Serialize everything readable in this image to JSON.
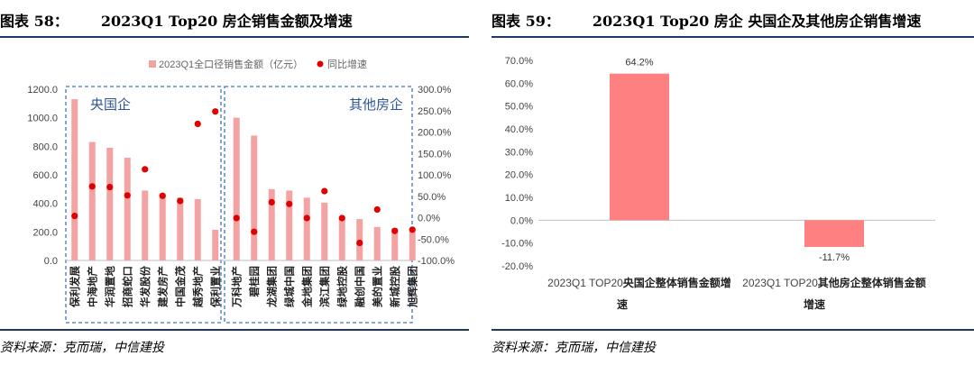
{
  "left": {
    "title_num": "图表 58：",
    "title_text": "2023Q1 Top20 房企销售金额及增速",
    "source": "资料来源：克而瑞，中信建投",
    "chart_data": {
      "type": "bar",
      "series": [
        {
          "name": "2023Q1全口径销售金额（亿元）",
          "axis": "left",
          "kind": "bar",
          "color": "#f4a3a3"
        },
        {
          "name": "同比增速",
          "axis": "right",
          "kind": "scatter",
          "color": "#e00000"
        }
      ],
      "categories": [
        "保利发展",
        "中海地产",
        "华润置地",
        "招商蛇口",
        "华发股份",
        "建发房产",
        "中国金茂",
        "越秀地产",
        "保利置业",
        "万科地产",
        "碧桂园",
        "龙湖集团",
        "绿城中国",
        "金地集团",
        "滨江集团",
        "绿地控股",
        "融创中国",
        "美的置业",
        "新城控股",
        "旭辉集团"
      ],
      "bar_values": [
        1130,
        830,
        790,
        720,
        490,
        470,
        440,
        430,
        215,
        1000,
        875,
        500,
        490,
        440,
        405,
        300,
        290,
        235,
        225,
        225
      ],
      "growth_values_pct": [
        4.0,
        73.0,
        71.5,
        52.0,
        113.0,
        51.0,
        39.0,
        219.0,
        248.0,
        -1.0,
        -33.0,
        36.0,
        32.0,
        -1.0,
        62.0,
        -1.0,
        -59.0,
        19.0,
        -31.0,
        -28.0
      ],
      "left_ticks": [
        "0.0",
        "200.0",
        "400.0",
        "600.0",
        "800.0",
        "1000.0",
        "1200.0"
      ],
      "right_ticks": [
        "-100.0%",
        "-50.0%",
        "0.0%",
        "50.0%",
        "100.0%",
        "150.0%",
        "200.0%",
        "250.0%",
        "300.0%"
      ],
      "ylim_left": [
        0,
        1200
      ],
      "ylim_right": [
        -100,
        300
      ],
      "groups": [
        {
          "label": "央国企",
          "from": 0,
          "to": 8
        },
        {
          "label": "其他房企",
          "from": 9,
          "to": 19
        }
      ],
      "legend_position": "top"
    }
  },
  "right": {
    "title_num": "图表 59：",
    "title_text": "2023Q1 Top20 房企  央国企及其他房企销售增速",
    "source": "资料来源：克而瑞，中信建投",
    "chart_data": {
      "type": "bar",
      "categories": [
        {
          "line1": "2023Q1 TOP20",
          "line1_bold": "央国企整体销售金额增",
          "line2": "速"
        },
        {
          "line1": "2023Q1 TOP20",
          "line1_bold": "其他房企整体销售金额",
          "line2": "增速"
        }
      ],
      "values": [
        64.2,
        -11.7
      ],
      "data_labels": [
        "64.2%",
        "-11.7%"
      ],
      "ticks": [
        "-20.0%",
        "-10.0%",
        "0.0%",
        "10.0%",
        "20.0%",
        "30.0%",
        "40.0%",
        "50.0%",
        "60.0%",
        "70.0%"
      ],
      "ylim": [
        -20,
        70
      ],
      "bar_color": "#ff8080"
    }
  }
}
